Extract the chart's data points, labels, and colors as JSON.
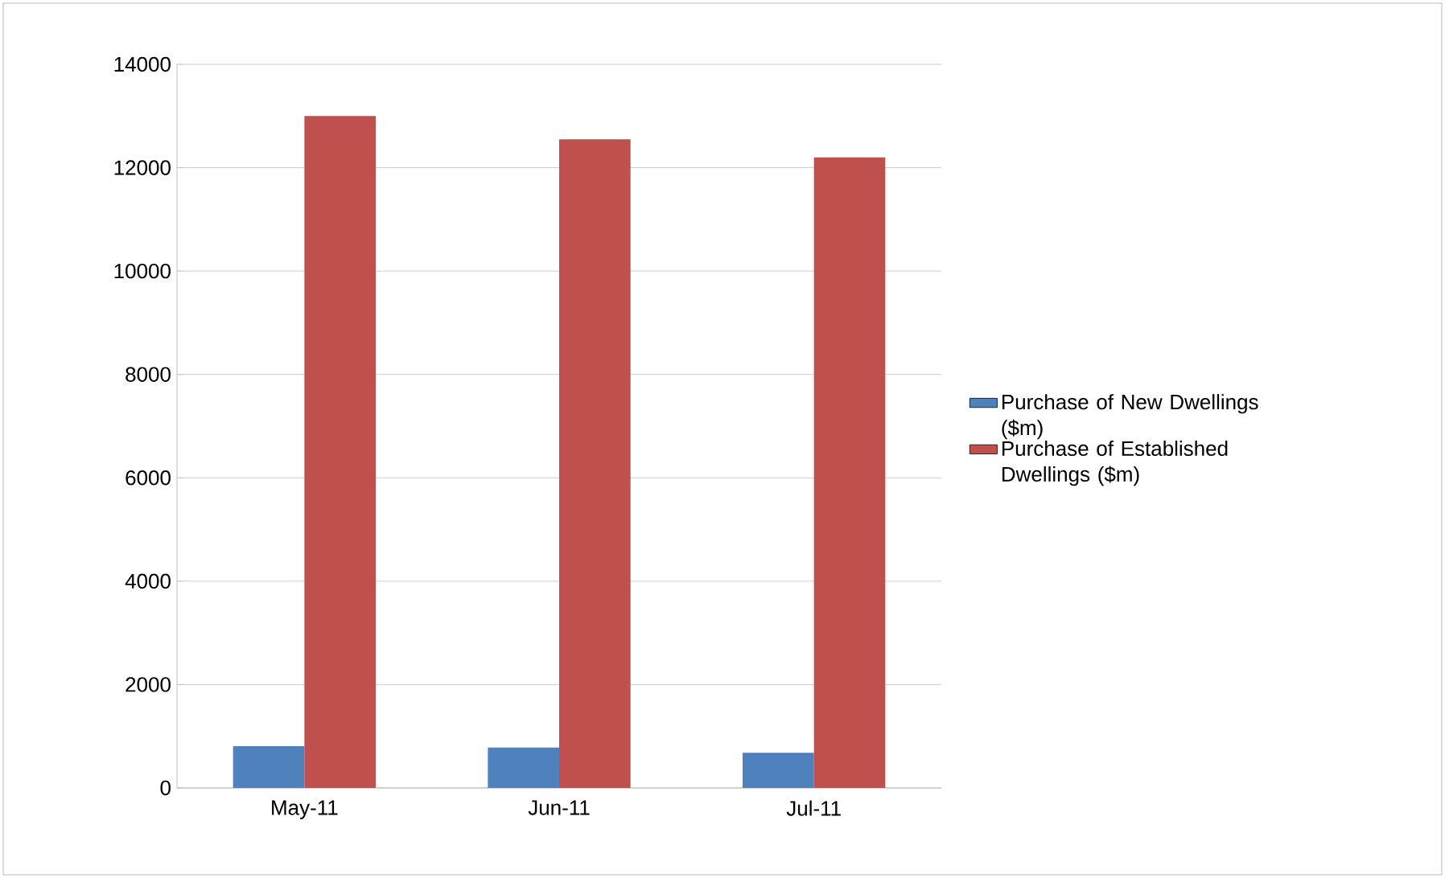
{
  "chart_data": {
    "type": "bar",
    "categories": [
      "May-11",
      "Jun-11",
      "Jul-11"
    ],
    "series": [
      {
        "name": "Purchase of New Dwellings ($m)",
        "color": "#4f81bd",
        "values": [
          810,
          780,
          680
        ]
      },
      {
        "name": "Purchase of Established Dwellings ($m)",
        "color": "#c0504d",
        "values": [
          13000,
          12550,
          12200
        ]
      }
    ],
    "ylim": [
      0,
      14000
    ],
    "yticks": [
      0,
      2000,
      4000,
      6000,
      8000,
      10000,
      12000,
      14000
    ],
    "grid": "y",
    "legend": "right"
  }
}
